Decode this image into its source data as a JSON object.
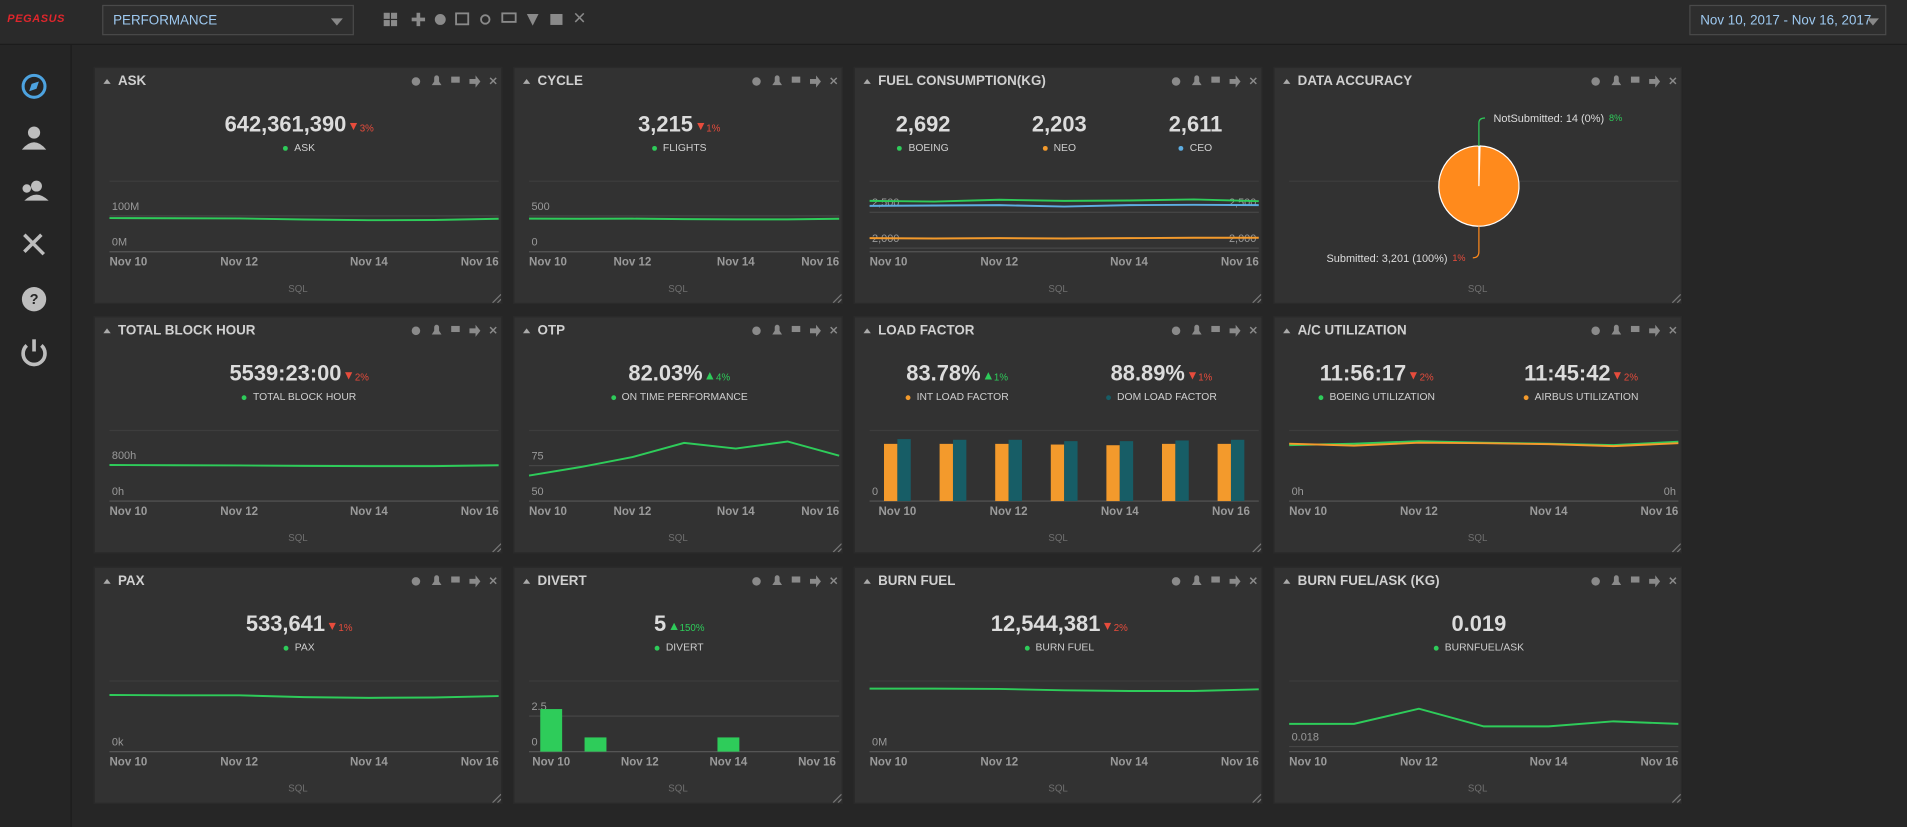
{
  "header": {
    "logo": "PEGASUS",
    "dashboard": "PERFORMANCE",
    "date_range": "Nov 10, 2017 - Nov 16, 2017"
  },
  "widgets": [
    {
      "title": "ASK",
      "footer": "SQL",
      "kpis": [
        {
          "value": "642,361,390",
          "change": "3%",
          "direction": "down",
          "label": "ASK",
          "color": "#2ecc5a"
        }
      ],
      "chart": {
        "type": "line",
        "categories": [
          "Nov 10",
          null,
          "Nov 12",
          null,
          "Nov 14",
          null,
          "Nov 16"
        ],
        "series": [
          {
            "color": "#2ecc5a",
            "values": [
              94000000,
              93500000,
              93000000,
              90000000,
              88000000,
              88500000,
              92000000
            ]
          }
        ],
        "ylim": [
          0,
          190000000
        ],
        "yticks": [
          {
            "value": 0,
            "label": "0M"
          },
          {
            "value": 100000000,
            "label": "100M"
          }
        ]
      }
    },
    {
      "title": "CYCLE",
      "footer": "SQL",
      "kpis": [
        {
          "value": "3,215",
          "change": "1%",
          "direction": "down",
          "label": "FLIGHTS",
          "color": "#2ecc5a"
        }
      ],
      "chart": {
        "type": "line",
        "categories": [
          "Nov 10",
          null,
          "Nov 12",
          null,
          "Nov 14",
          null,
          "Nov 16"
        ],
        "series": [
          {
            "color": "#2ecc5a",
            "values": [
              462,
              460,
              462,
              455,
              452,
              452,
              460
            ]
          }
        ],
        "ylim": [
          0,
          950
        ],
        "yticks": [
          0,
          500
        ]
      }
    },
    {
      "title": "FUEL CONSUMPTION(KG)",
      "footer": "SQL",
      "kpis": [
        {
          "value": "2,692",
          "label": "BOEING",
          "color": "#2ecc5a"
        },
        {
          "value": "2,203",
          "label": "NEO",
          "color": "#f39a2c"
        },
        {
          "value": "2,611",
          "label": "CEO",
          "color": "#5dade2"
        }
      ],
      "chart": {
        "type": "line",
        "categories": [
          "Nov 10",
          null,
          "Nov 12",
          null,
          "Nov 14",
          null,
          "Nov 16"
        ],
        "series": [
          {
            "color": "#2ecc5a",
            "values": [
              2660,
              2650,
              2675,
              2660,
              2665,
              2680,
              2655
            ]
          },
          {
            "color": "#f39a2c",
            "values": [
              2140,
              2135,
              2140,
              2135,
              2140,
              2145,
              2145
            ]
          },
          {
            "color": "#5dade2",
            "values": [
              2590,
              2595,
              2600,
              2580,
              2600,
              2605,
              2600
            ]
          }
        ],
        "ylim": [
          1950,
          2900
        ],
        "yticks": [
          {
            "value": 2000,
            "label": "2,000"
          },
          {
            "value": 2500,
            "label": "2,500"
          }
        ],
        "y2lim": [
          1950,
          2900
        ],
        "y2ticks": [
          {
            "value": 2000,
            "label": "2,000"
          },
          {
            "value": 2500,
            "label": "2,500"
          }
        ]
      }
    },
    {
      "title": "DATA ACCURACY",
      "footer": "SQL",
      "chart": {
        "type": "pie",
        "values": [
          14,
          3201
        ],
        "value_labels": [
          "NotSubmitted: 14 (0%)",
          "Submitted: 3,201 (100%)"
        ],
        "changes": [
          {
            "text": "8%",
            "direction": "up"
          },
          {
            "text": "1%",
            "direction": "down"
          }
        ],
        "colors": [
          "#ff8a1c",
          "#ff8a1c"
        ]
      }
    },
    {
      "title": "TOTAL BLOCK HOUR",
      "footer": "SQL",
      "kpis": [
        {
          "value": "5539:23:00",
          "change": "2%",
          "direction": "down",
          "label": "TOTAL BLOCK HOUR",
          "color": "#2ecc5a"
        }
      ],
      "chart": {
        "type": "line",
        "categories": [
          "Nov 10",
          null,
          "Nov 12",
          null,
          "Nov 14",
          null,
          "Nov 16"
        ],
        "series": [
          {
            "color": "#2ecc5a",
            "values": [
              805,
              800,
              795,
              785,
              780,
              780,
              800
            ]
          }
        ],
        "ylim": [
          0,
          1520
        ],
        "yticks": [
          {
            "value": 0,
            "label": "0h"
          },
          {
            "value": 800,
            "label": "800h"
          }
        ]
      }
    },
    {
      "title": "OTP",
      "footer": "SQL",
      "kpis": [
        {
          "value": "82.03%",
          "change": "4%",
          "direction": "up",
          "label": "ON TIME PERFORMANCE",
          "color": "#2ecc5a"
        }
      ],
      "chart": {
        "type": "line",
        "categories": [
          "Nov 10",
          null,
          "Nov 12",
          null,
          "Nov 14",
          null,
          "Nov 16"
        ],
        "series": [
          {
            "color": "#2ecc5a",
            "values": [
              68,
              74,
              81,
              91,
              87,
              92,
              82
            ]
          }
        ],
        "ylim": [
          50,
          98
        ],
        "yticks": [
          50,
          75
        ]
      }
    },
    {
      "title": "LOAD FACTOR",
      "footer": "SQL",
      "kpis": [
        {
          "value": "83.78%",
          "change": "1%",
          "direction": "up",
          "label": "INT LOAD FACTOR",
          "color": "#f39a2c"
        },
        {
          "value": "88.89%",
          "change": "1%",
          "direction": "down",
          "label": "DOM LOAD FACTOR",
          "color": "#175d66"
        }
      ],
      "chart": {
        "type": "bar",
        "categories": [
          "Nov 10",
          null,
          "Nov 12",
          null,
          "Nov 14",
          null,
          "Nov 16"
        ],
        "series": [
          {
            "color": "#f39a2c",
            "values": [
              84,
              84,
              84,
              83,
              82,
              84,
              84
            ]
          },
          {
            "color": "#175d66",
            "values": [
              91,
              90,
              90,
              88,
              88,
              89,
              90
            ]
          }
        ],
        "ylim": [
          0,
          100
        ],
        "yticks": [
          0
        ]
      }
    },
    {
      "title": "A/C UTILIZATION",
      "footer": "SQL",
      "kpis": [
        {
          "value": "11:56:17",
          "change": "2%",
          "direction": "down",
          "label": "BOEING UTILIZATION",
          "color": "#2ecc5a"
        },
        {
          "value": "11:45:42",
          "change": "2%",
          "direction": "down",
          "label": "AIRBUS UTILIZATION",
          "color": "#f39a2c"
        }
      ],
      "chart": {
        "type": "line",
        "categories": [
          "Nov 10",
          null,
          "Nov 12",
          null,
          "Nov 14",
          null,
          "Nov 16"
        ],
        "series": [
          {
            "color": "#2ecc5a",
            "values": [
              11.5,
              11.8,
              12.3,
              12.0,
              11.8,
              11.5,
              12.2
            ]
          },
          {
            "color": "#f39a2c",
            "values": [
              11.8,
              11.4,
              12.0,
              11.9,
              11.7,
              11.3,
              11.9
            ]
          }
        ],
        "ylim": [
          0,
          14
        ],
        "yticks": [
          {
            "value": 0,
            "label": "0h"
          }
        ],
        "y2lim": [
          0,
          14
        ],
        "y2ticks": [
          {
            "value": 0,
            "label": "0h"
          }
        ]
      }
    },
    {
      "title": "PAX",
      "footer": "SQL",
      "kpis": [
        {
          "value": "533,641",
          "change": "1%",
          "direction": "down",
          "label": "PAX",
          "color": "#2ecc5a"
        }
      ],
      "chart": {
        "type": "line",
        "categories": [
          "Nov 10",
          null,
          "Nov 12",
          null,
          "Nov 14",
          null,
          "Nov 16"
        ],
        "series": [
          {
            "color": "#2ecc5a",
            "values": [
              79000,
              78500,
              78500,
              76000,
              75000,
              75500,
              77500
            ]
          }
        ],
        "ylim": [
          0,
          95000
        ],
        "yticks": [
          {
            "value": 0,
            "label": "0k"
          }
        ]
      }
    },
    {
      "title": "DIVERT",
      "footer": "SQL",
      "kpis": [
        {
          "value": "5",
          "change": "150%",
          "direction": "up",
          "label": "DIVERT",
          "color": "#2ecc5a"
        }
      ],
      "chart": {
        "type": "bar",
        "categories": [
          "Nov 10",
          null,
          "Nov 12",
          null,
          "Nov 14",
          null,
          "Nov 16"
        ],
        "series": [
          {
            "color": "#2ecc5a",
            "values": [
              3,
              1,
              0,
              0,
              1,
              0,
              0
            ]
          }
        ],
        "ylim": [
          0,
          4.8
        ],
        "yticks": [
          0,
          2.5
        ]
      }
    },
    {
      "title": "BURN FUEL",
      "footer": "SQL",
      "kpis": [
        {
          "value": "12,544,381",
          "change": "2%",
          "direction": "down",
          "label": "BURN FUEL",
          "color": "#2ecc5a"
        }
      ],
      "chart": {
        "type": "line",
        "categories": [
          "Nov 10",
          null,
          "Nov 12",
          null,
          "Nov 14",
          null,
          "Nov 16"
        ],
        "series": [
          {
            "color": "#2ecc5a",
            "values": [
              1850000,
              1850000,
              1840000,
              1800000,
              1780000,
              1780000,
              1830000
            ]
          }
        ],
        "ylim": [
          0,
          2000000
        ],
        "yticks": [
          {
            "value": 0,
            "label": "0M"
          }
        ]
      }
    },
    {
      "title": "BURN FUEL/ASK (KG)",
      "footer": "SQL",
      "kpis": [
        {
          "value": "0.019",
          "label": "BURNFUEL/ASK",
          "color": "#2ecc5a"
        }
      ],
      "chart": {
        "type": "line",
        "categories": [
          "Nov 10",
          null,
          "Nov 12",
          null,
          "Nov 14",
          null,
          "Nov 16"
        ],
        "series": [
          {
            "color": "#2ecc5a",
            "values": [
              0.0189,
              0.0189,
              0.0195,
              0.0188,
              0.0188,
              0.019,
              0.0189
            ]
          }
        ],
        "ylim": [
          0.0178,
          0.0205
        ],
        "yticks": [
          0.018
        ]
      }
    }
  ]
}
